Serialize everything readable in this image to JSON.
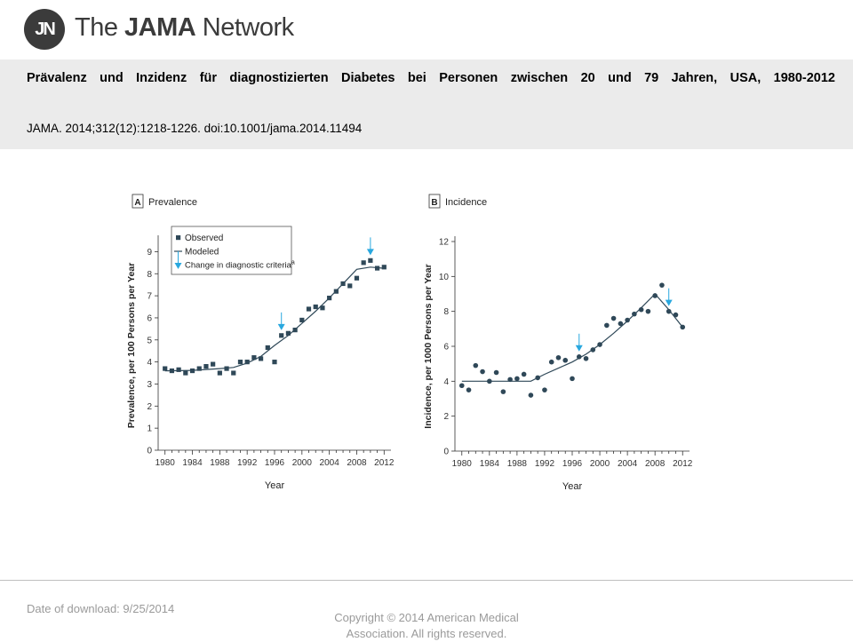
{
  "header": {
    "logo_mark": "JN",
    "logo_text_prefix": "The ",
    "logo_text_bold": "JAMA",
    "logo_text_suffix": " Network",
    "title": "Prävalenz und Inzidenz für diagnostizierten Diabetes bei Personen zwischen 20 und 79 Jahren, USA, 1980-2012",
    "citation": "JAMA. 2014;312(12):1218-1226. doi:10.1001/jama.2014.11494"
  },
  "footer": {
    "download": "Date of download:  9/25/2014",
    "copyright_line1": "Copyright © 2014 American Medical",
    "copyright_line2": "Association. All rights reserved."
  },
  "colors": {
    "observed": "#2f4858",
    "modeled": "#2f4858",
    "arrow": "#29a8df"
  },
  "chart_data": [
    {
      "type": "scatter",
      "panel_letter": "A",
      "panel_title": "Prevalence",
      "xlabel": "Year",
      "ylabel": "Prevalence, per 100 Persons per Year",
      "xlim": [
        1979,
        2013
      ],
      "ylim": [
        0,
        9.5
      ],
      "xticks": [
        1980,
        1984,
        1988,
        1992,
        1996,
        2000,
        2004,
        2008,
        2012
      ],
      "yticks": [
        0,
        1,
        2,
        3,
        4,
        5,
        6,
        7,
        8,
        9
      ],
      "marker": "square",
      "legend": {
        "placement": "top-left",
        "observed": "Observed",
        "modeled": "Modeled",
        "change": "Change in diagnostic criteria",
        "change_superscript": "a"
      },
      "observed": {
        "x": [
          1980,
          1981,
          1982,
          1983,
          1984,
          1985,
          1986,
          1987,
          1988,
          1989,
          1990,
          1991,
          1992,
          1993,
          1994,
          1995,
          1996,
          1997,
          1998,
          1999,
          2000,
          2001,
          2002,
          2003,
          2004,
          2005,
          2006,
          2007,
          2008,
          2009,
          2010,
          2011,
          2012
        ],
        "y": [
          3.7,
          3.6,
          3.65,
          3.5,
          3.6,
          3.7,
          3.8,
          3.9,
          3.5,
          3.7,
          3.5,
          4.0,
          4.0,
          4.2,
          4.15,
          4.65,
          4.0,
          5.2,
          5.3,
          5.45,
          5.9,
          6.4,
          6.5,
          6.45,
          6.9,
          7.2,
          7.55,
          7.45,
          7.8,
          8.5,
          8.6,
          8.25,
          8.3
        ]
      },
      "modeled": {
        "x": [
          1980,
          1984,
          1988,
          1990,
          1992,
          1994,
          1996,
          1998,
          2000,
          2002,
          2004,
          2006,
          2008,
          2010,
          2012
        ],
        "y": [
          3.6,
          3.62,
          3.7,
          3.75,
          3.95,
          4.25,
          4.75,
          5.2,
          5.75,
          6.3,
          6.9,
          7.55,
          8.2,
          8.3,
          8.25
        ]
      },
      "change_arrows_x": [
        1997,
        2010
      ]
    },
    {
      "type": "scatter",
      "panel_letter": "B",
      "panel_title": "Incidence",
      "xlabel": "Year",
      "ylabel": "Incidence, per 1000 Persons per Year",
      "xlim": [
        1979,
        2013
      ],
      "ylim": [
        0,
        12
      ],
      "xticks": [
        1980,
        1984,
        1988,
        1992,
        1996,
        2000,
        2004,
        2008,
        2012
      ],
      "yticks": [
        0,
        2,
        4,
        6,
        8,
        10,
        12
      ],
      "marker": "circle",
      "observed": {
        "x": [
          1980,
          1981,
          1982,
          1983,
          1984,
          1985,
          1986,
          1987,
          1988,
          1989,
          1990,
          1991,
          1992,
          1993,
          1994,
          1995,
          1996,
          1997,
          1998,
          1999,
          2000,
          2001,
          2002,
          2003,
          2004,
          2005,
          2006,
          2007,
          2008,
          2009,
          2010,
          2011,
          2012
        ],
        "y": [
          3.75,
          3.5,
          4.9,
          4.55,
          4.0,
          4.5,
          3.4,
          4.1,
          4.15,
          4.4,
          3.2,
          4.2,
          3.5,
          5.1,
          5.35,
          5.2,
          4.15,
          5.4,
          5.3,
          5.8,
          6.1,
          7.2,
          7.6,
          7.3,
          7.5,
          7.85,
          8.1,
          8.0,
          8.9,
          9.5,
          8.0,
          7.8,
          7.1
        ]
      },
      "modeled": {
        "x": [
          1980,
          1982,
          1986,
          1990,
          1992,
          1994,
          1996,
          1998,
          2000,
          2002,
          2004,
          2006,
          2008,
          2010,
          2012
        ],
        "y": [
          4.0,
          4.0,
          4.0,
          4.0,
          4.4,
          4.75,
          5.1,
          5.55,
          6.1,
          6.75,
          7.45,
          8.2,
          9.0,
          8.1,
          7.1
        ]
      },
      "change_arrows_x": [
        1997,
        2010
      ]
    }
  ]
}
